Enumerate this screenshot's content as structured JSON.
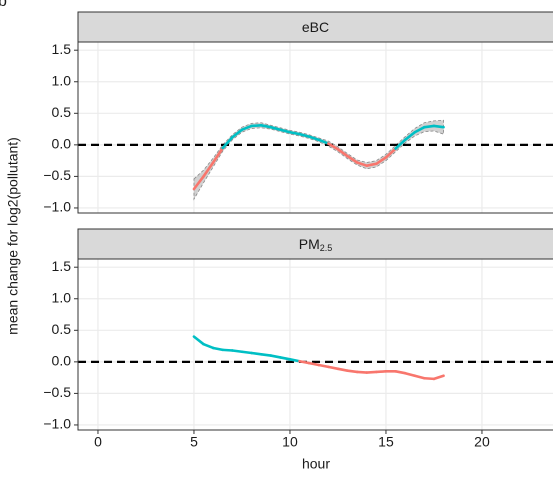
{
  "panel_tag": "b",
  "chart_data": {
    "type": "line",
    "ylabel": "mean change for log2(pollutant)",
    "xlabel": "hour",
    "x": [
      5,
      5.5,
      6,
      6.5,
      7,
      7.5,
      8,
      8.5,
      9,
      9.5,
      10,
      10.5,
      11,
      11.5,
      12,
      12.5,
      13,
      13.5,
      14,
      14.5,
      15,
      15.5,
      16,
      16.5,
      17,
      17.5,
      18
    ],
    "xlim": [
      -1.04,
      23.7
    ],
    "xticks": [
      0,
      5,
      10,
      15,
      20
    ],
    "color_positive": "#00bfc4",
    "color_negative": "#f8766d",
    "band_color": "#b3b3b3",
    "hline": 0,
    "grid": true,
    "facets": [
      {
        "strip": "eBC",
        "values": [
          -0.7,
          -0.5,
          -0.28,
          -0.05,
          0.12,
          0.24,
          0.3,
          0.31,
          0.28,
          0.24,
          0.2,
          0.17,
          0.13,
          0.08,
          0.02,
          -0.07,
          -0.18,
          -0.28,
          -0.33,
          -0.3,
          -0.2,
          -0.06,
          0.08,
          0.2,
          0.28,
          0.3,
          0.28
        ],
        "lower": [
          -0.86,
          -0.6,
          -0.35,
          -0.1,
          0.08,
          0.2,
          0.26,
          0.27,
          0.25,
          0.21,
          0.17,
          0.14,
          0.1,
          0.05,
          -0.02,
          -0.11,
          -0.22,
          -0.32,
          -0.38,
          -0.35,
          -0.25,
          -0.11,
          0.03,
          0.14,
          0.21,
          0.22,
          0.17
        ],
        "upper": [
          -0.54,
          -0.4,
          -0.21,
          0.0,
          0.16,
          0.28,
          0.34,
          0.35,
          0.31,
          0.27,
          0.23,
          0.2,
          0.16,
          0.11,
          0.06,
          -0.03,
          -0.14,
          -0.24,
          -0.28,
          -0.25,
          -0.15,
          -0.01,
          0.13,
          0.26,
          0.35,
          0.38,
          0.39
        ],
        "ylim": [
          -1.08,
          1.63
        ],
        "yticks": [
          {
            "value": -1,
            "label": "−1.0"
          },
          {
            "value": -0.5,
            "label": "−0.5"
          },
          {
            "value": 0,
            "label": "0.0"
          },
          0.5,
          {
            "value": 1,
            "label": "1.0"
          },
          1.5
        ]
      },
      {
        "strip": "PM",
        "strip_subscript": "2.5",
        "values": [
          0.4,
          0.28,
          0.22,
          0.19,
          0.18,
          0.16,
          0.14,
          0.12,
          0.1,
          0.07,
          0.04,
          0.01,
          -0.02,
          -0.05,
          -0.08,
          -0.11,
          -0.14,
          -0.16,
          -0.17,
          -0.16,
          -0.15,
          -0.15,
          -0.18,
          -0.22,
          -0.26,
          -0.27,
          -0.22
        ],
        "ylim": [
          -1.08,
          1.63
        ],
        "yticks": [
          {
            "value": -1,
            "label": "−1.0"
          },
          {
            "value": -0.5,
            "label": "−0.5"
          },
          {
            "value": 0,
            "label": "0.0"
          },
          0.5,
          {
            "value": 1,
            "label": "1.0"
          },
          1.5
        ]
      }
    ]
  }
}
